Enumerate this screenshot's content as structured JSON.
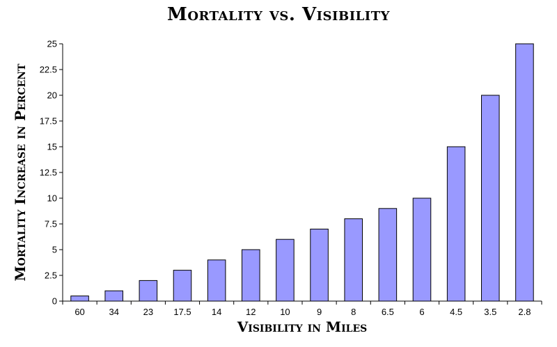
{
  "chart_data": {
    "type": "bar",
    "title": "Mortality vs. Visibility",
    "xlabel": "Visibility in Miles",
    "ylabel": "Mortality Increase in Percent",
    "categories": [
      "60",
      "34",
      "23",
      "17.5",
      "14",
      "12",
      "10",
      "9",
      "8",
      "6.5",
      "6",
      "4.5",
      "3.5",
      "2.8"
    ],
    "values": [
      0.5,
      1,
      2,
      3,
      4,
      5,
      6,
      7,
      8,
      9,
      10,
      15,
      20,
      25
    ],
    "ylim": [
      0,
      25
    ],
    "yticks": [
      "0",
      "2.5",
      "5",
      "7.5",
      "10",
      "12.5",
      "15",
      "17.5",
      "20",
      "22.5",
      "25"
    ],
    "grid": false,
    "legend": "none",
    "bar_color": "#9999ff",
    "bar_edge_color": "#000000"
  }
}
